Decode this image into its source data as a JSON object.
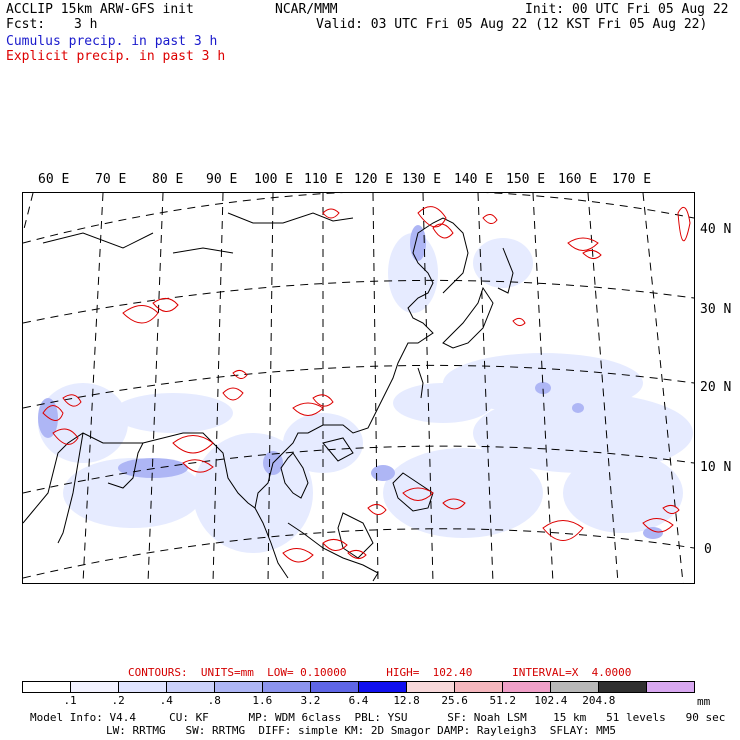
{
  "header": {
    "title_left": "ACCLIP 15km ARW-GFS init",
    "fcst_label": "Fcst:",
    "fcst_value": "3 h",
    "center": "NCAR/MMM",
    "init": "Init: 00 UTC Fri 05 Aug 22",
    "valid": "Valid: 03 UTC Fri 05 Aug 22 (12 KST Fri 05 Aug 22)",
    "legend_cumulus": "Cumulus precip. in past 3 h",
    "legend_explicit": "Explicit precip. in past 3 h"
  },
  "colors": {
    "cumulus": "#1a1acc",
    "explicit": "#dd0000",
    "bins": [
      "#ffffff",
      "#f2f2ff",
      "#e0e4ff",
      "#cbd1fa",
      "#aeb6f5",
      "#8c94ee",
      "#5f66e6",
      "#1010ee",
      "#f7d8da",
      "#f5b7be",
      "#f0a0c8",
      "#b8b8b8",
      "#303030",
      "#d8a8f0"
    ]
  },
  "map": {
    "lon_labels": [
      "60 E",
      "70 E",
      "80 E",
      "90 E",
      "100 E",
      "110 E",
      "120 E",
      "130 E",
      "140 E",
      "150 E",
      "160 E",
      "170 E"
    ],
    "lat_labels": [
      "40 N",
      "30 N",
      "20 N",
      "10 N",
      "0"
    ]
  },
  "contours": "CONTOURS:  UNITS=mm  LOW= 0.10000      HIGH=  102.40      INTERVAL=X  4.0000",
  "colorbar": {
    "ticks": [
      ".1",
      ".2",
      ".4",
      ".8",
      "1.6",
      "3.2",
      "6.4",
      "12.8",
      "25.6",
      "51.2",
      "102.4",
      "204.8"
    ],
    "unit": "mm"
  },
  "footer": {
    "line1": "Model Info: V4.4     CU: KF      MP: WDM 6class  PBL: YSU      SF: Noah LSM    15 km   51 levels   90 sec",
    "line2": "LW: RRTMG   SW: RRTMG  DIFF: simple KM: 2D Smagor DAMP: Rayleigh3  SFLAY: MM5"
  }
}
